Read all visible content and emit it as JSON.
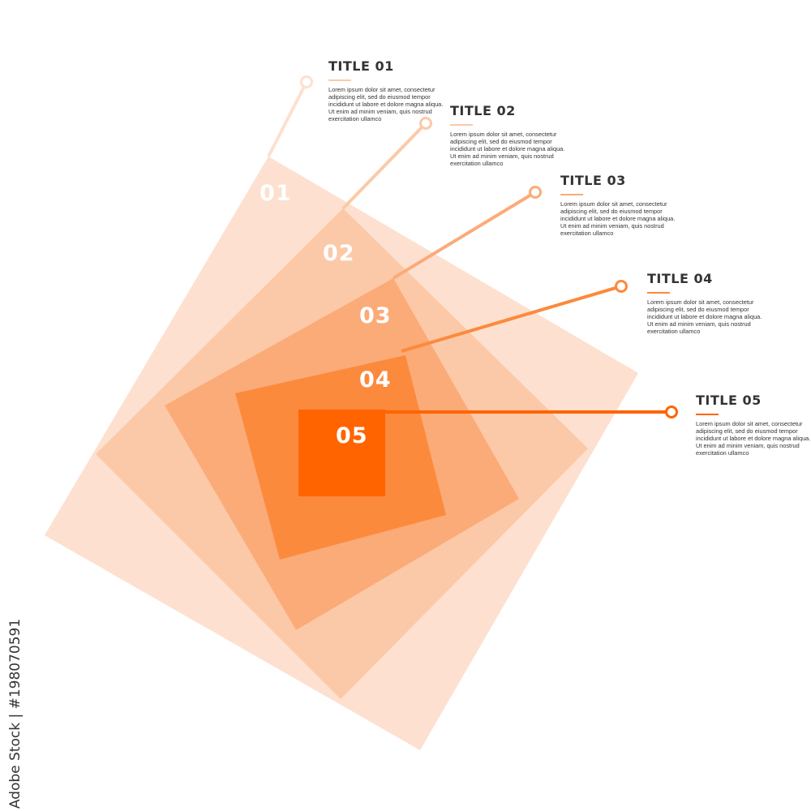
{
  "colors": {
    "level1": "#fde0cf",
    "level2": "#fcc9a8",
    "level3": "#fbab78",
    "level4": "#fc8a3d",
    "level5": "#ff6400",
    "heading": "#333333",
    "accent": "#f47a2c"
  },
  "steps": [
    {
      "number": "01",
      "title": "TITLE 01",
      "body": "Lorem ipsum dolor sit amet, consectetur adipiscing elit, sed do eiusmod tempor incididunt ut labore et dolore magna aliqua. Ut enim ad minim veniam, quis nostrud exercitation ullamco"
    },
    {
      "number": "02",
      "title": "TITLE 02",
      "body": "Lorem ipsum dolor sit amet, consectetur adipiscing elit, sed do eiusmod tempor incididunt ut labore et dolore magna aliqua. Ut enim ad minim veniam, quis nostrud exercitation ullamco"
    },
    {
      "number": "03",
      "title": "TITLE 03",
      "body": "Lorem ipsum dolor sit amet, consectetur adipiscing elit, sed do eiusmod tempor incididunt ut labore et dolore magna aliqua. Ut enim ad minim veniam, quis nostrud exercitation ullamco"
    },
    {
      "number": "04",
      "title": "TITLE 04",
      "body": "Lorem ipsum dolor sit amet, consectetur adipiscing elit, sed do eiusmod tempor incididunt ut labore et dolore magna aliqua. Ut enim ad minim veniam, quis nostrud exercitation ullamco"
    },
    {
      "number": "05",
      "title": "TITLE 05",
      "body": "Lorem ipsum dolor sit amet, consectetur adipiscing elit, sed do eiusmod tempor incididunt ut labore et dolore magna aliqua. Ut enim ad minim veniam, quis nostrud exercitation ullamco"
    }
  ],
  "watermark": {
    "id_text": "Adobe Stock | #198070591"
  }
}
